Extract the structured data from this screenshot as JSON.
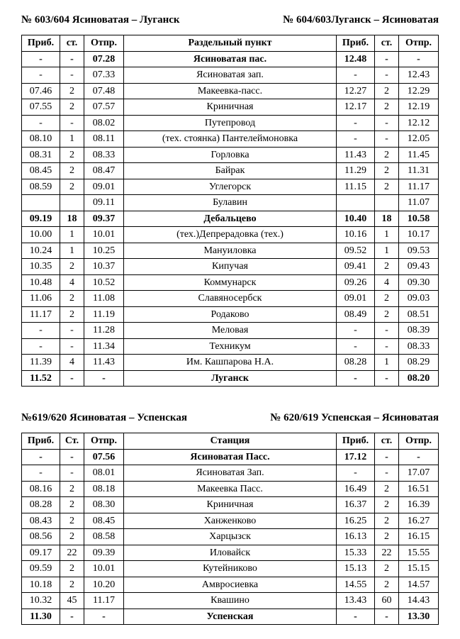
{
  "block1": {
    "title_left": "№ 603/604 Ясиноватая – Луганск",
    "title_right": "№ 604/603Луганск – Ясиноватая",
    "headers": {
      "arr": "Приб.",
      "stop": "ст.",
      "dep": "Отпр.",
      "name": "Раздельный пункт",
      "arr2": "Приб.",
      "stop2": "ст.",
      "dep2": "Отпр."
    },
    "rows": [
      {
        "b": true,
        "a1": "-",
        "s1": "-",
        "d1": "07.28",
        "n": "Ясиноватая пас.",
        "a2": "12.48",
        "s2": "-",
        "d2": "-"
      },
      {
        "a1": "-",
        "s1": "-",
        "d1": "07.33",
        "n": "Ясиноватая зап.",
        "a2": "-",
        "s2": "-",
        "d2": "12.43"
      },
      {
        "a1": "07.46",
        "s1": "2",
        "d1": "07.48",
        "n": "Макеевка-пасс.",
        "a2": "12.27",
        "s2": "2",
        "d2": "12.29"
      },
      {
        "a1": "07.55",
        "s1": "2",
        "d1": "07.57",
        "n": "Криничная",
        "a2": "12.17",
        "s2": "2",
        "d2": "12.19"
      },
      {
        "a1": "-",
        "s1": "-",
        "d1": "08.02",
        "n": "Путепровод",
        "a2": "-",
        "s2": "-",
        "d2": "12.12"
      },
      {
        "a1": "08.10",
        "s1": "1",
        "d1": "08.11",
        "n": "(тех. стоянка) Пантелеймоновка",
        "a2": "-",
        "s2": "-",
        "d2": "12.05"
      },
      {
        "a1": "08.31",
        "s1": "2",
        "d1": "08.33",
        "n": "Горловка",
        "a2": "11.43",
        "s2": "2",
        "d2": "11.45"
      },
      {
        "a1": "08.45",
        "s1": "2",
        "d1": "08.47",
        "n": "Байрак",
        "a2": "11.29",
        "s2": "2",
        "d2": "11.31"
      },
      {
        "a1": "08.59",
        "s1": "2",
        "d1": "09.01",
        "n": "Углегорск",
        "a2": "11.15",
        "s2": "2",
        "d2": "11.17"
      },
      {
        "a1": "",
        "s1": "",
        "d1": "09.11",
        "n": "Булавин",
        "a2": "",
        "s2": "",
        "d2": "11.07"
      },
      {
        "b": true,
        "a1": "09.19",
        "s1": "18",
        "d1": "09.37",
        "n": "Дебальцево",
        "a2": "10.40",
        "s2": "18",
        "d2": "10.58"
      },
      {
        "a1": "10.00",
        "s1": "1",
        "d1": "10.01",
        "n": "(тех.)Депрерадовка (тех.)",
        "a2": "10.16",
        "s2": "1",
        "d2": "10.17"
      },
      {
        "a1": "10.24",
        "s1": "1",
        "d1": "10.25",
        "n": "Мануиловка",
        "a2": "09.52",
        "s2": "1",
        "d2": "09.53"
      },
      {
        "a1": "10.35",
        "s1": "2",
        "d1": "10.37",
        "n": "Кипучая",
        "a2": "09.41",
        "s2": "2",
        "d2": "09.43"
      },
      {
        "a1": "10.48",
        "s1": "4",
        "d1": "10.52",
        "n": "Коммунарск",
        "a2": "09.26",
        "s2": "4",
        "d2": "09.30"
      },
      {
        "a1": "11.06",
        "s1": "2",
        "d1": "11.08",
        "n": "Славяносербск",
        "a2": "09.01",
        "s2": "2",
        "d2": "09.03"
      },
      {
        "a1": "11.17",
        "s1": "2",
        "d1": "11.19",
        "n": "Родаково",
        "a2": "08.49",
        "s2": "2",
        "d2": "08.51"
      },
      {
        "a1": "-",
        "s1": "-",
        "d1": "11.28",
        "n": "Меловая",
        "a2": "-",
        "s2": "-",
        "d2": "08.39"
      },
      {
        "a1": "-",
        "s1": "-",
        "d1": "11.34",
        "n": "Техникум",
        "a2": "-",
        "s2": "-",
        "d2": "08.33"
      },
      {
        "a1": "11.39",
        "s1": "4",
        "d1": "11.43",
        "n": "Им. Кашпарова Н.А.",
        "a2": "08.28",
        "s2": "1",
        "d2": "08.29"
      },
      {
        "b": true,
        "a1": "11.52",
        "s1": "-",
        "d1": "-",
        "n": "Луганск",
        "a2": "-",
        "s2": "-",
        "d2": "08.20"
      }
    ]
  },
  "block2": {
    "title_left": "№619/620 Ясиноватая – Успенская",
    "title_right": "№ 620/619 Успенская – Ясиноватая",
    "headers": {
      "arr": "Приб.",
      "stop": "Ст.",
      "dep": "Отпр.",
      "name": "Станция",
      "arr2": "Приб.",
      "stop2": "ст.",
      "dep2": "Отпр."
    },
    "rows": [
      {
        "b": true,
        "a1": "-",
        "s1": "-",
        "d1": "07.56",
        "n": "Ясиноватая Пасс.",
        "a2": "17.12",
        "s2": "-",
        "d2": "-"
      },
      {
        "a1": "-",
        "s1": "-",
        "d1": "08.01",
        "n": "Ясиноватая Зап.",
        "a2": "-",
        "s2": "-",
        "d2": "17.07"
      },
      {
        "a1": "08.16",
        "s1": "2",
        "d1": "08.18",
        "n": "Макеевка Пасс.",
        "a2": "16.49",
        "s2": "2",
        "d2": "16.51"
      },
      {
        "a1": "08.28",
        "s1": "2",
        "d1": "08.30",
        "n": "Криничная",
        "a2": "16.37",
        "s2": "2",
        "d2": "16.39"
      },
      {
        "a1": "08.43",
        "s1": "2",
        "d1": "08.45",
        "n": "Ханженково",
        "a2": "16.25",
        "s2": "2",
        "d2": "16.27"
      },
      {
        "a1": "08.56",
        "s1": "2",
        "d1": "08.58",
        "n": "Харцызск",
        "a2": "16.13",
        "s2": "2",
        "d2": "16.15"
      },
      {
        "a1": "09.17",
        "s1": "22",
        "d1": "09.39",
        "n": "Иловайск",
        "a2": "15.33",
        "s2": "22",
        "d2": "15.55"
      },
      {
        "a1": "09.59",
        "s1": "2",
        "d1": "10.01",
        "n": "Кутейниково",
        "a2": "15.13",
        "s2": "2",
        "d2": "15.15"
      },
      {
        "a1": "10.18",
        "s1": "2",
        "d1": "10.20",
        "n": "Амвросиевка",
        "a2": "14.55",
        "s2": "2",
        "d2": "14.57"
      },
      {
        "a1": "10.32",
        "s1": "45",
        "d1": "11.17",
        "n": "Квашино",
        "a2": "13.43",
        "s2": "60",
        "d2": "14.43"
      },
      {
        "b": true,
        "a1": "11.30",
        "s1": "-",
        "d1": "-",
        "n": "Успенская",
        "a2": "-",
        "s2": "-",
        "d2": "13.30"
      }
    ]
  }
}
